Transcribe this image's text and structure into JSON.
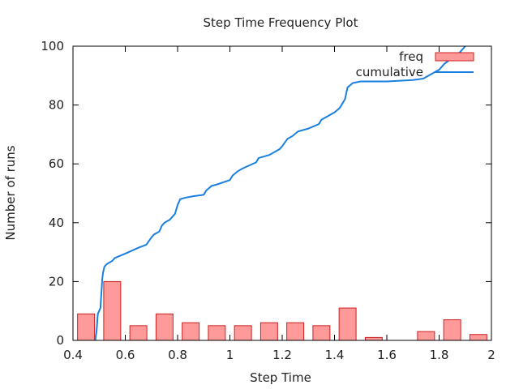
{
  "chart_data": {
    "type": "bar",
    "title": "Step Time Frequency Plot",
    "xlabel": "Step Time",
    "ylabel": "Number of runs",
    "xlim": [
      0.4,
      2.0
    ],
    "ylim": [
      0,
      100
    ],
    "x_ticks": [
      0.4,
      0.6,
      0.8,
      1,
      1.2,
      1.4,
      1.6,
      1.8,
      2
    ],
    "y_ticks": [
      0,
      20,
      40,
      60,
      80,
      100
    ],
    "grid": false,
    "legend_position": "top-right",
    "colors": {
      "bar_fill": "#ff9a9a",
      "bar_stroke": "#cc2020",
      "line": "#1a7fe0",
      "axis": "#000000"
    },
    "bar_width": 0.065,
    "series": [
      {
        "name": "freq",
        "type": "bar",
        "x": [
          0.45,
          0.55,
          0.65,
          0.75,
          0.85,
          0.95,
          1.05,
          1.15,
          1.25,
          1.35,
          1.45,
          1.55,
          1.65,
          1.75,
          1.85,
          1.95
        ],
        "values": [
          9,
          20,
          5,
          9,
          6,
          5,
          5,
          6,
          6,
          5,
          11,
          1,
          0,
          3,
          7,
          2
        ]
      },
      {
        "name": "cumulative",
        "type": "line",
        "x": [
          0.485,
          0.49,
          0.495,
          0.5,
          0.505,
          0.51,
          0.512,
          0.515,
          0.52,
          0.53,
          0.55,
          0.56,
          0.6,
          0.65,
          0.68,
          0.7,
          0.71,
          0.73,
          0.74,
          0.75,
          0.77,
          0.79,
          0.8,
          0.81,
          0.83,
          0.86,
          0.9,
          0.91,
          0.93,
          0.95,
          1.0,
          1.01,
          1.03,
          1.05,
          1.1,
          1.11,
          1.15,
          1.18,
          1.19,
          1.2,
          1.22,
          1.24,
          1.26,
          1.3,
          1.34,
          1.35,
          1.37,
          1.4,
          1.42,
          1.43,
          1.44,
          1.45,
          1.47,
          1.5,
          1.6,
          1.7,
          1.74,
          1.76,
          1.78,
          1.8,
          1.82,
          1.85,
          1.88,
          1.9
        ],
        "values": [
          0,
          3,
          9,
          10,
          11,
          18,
          21,
          23,
          25,
          26,
          27,
          28,
          29.5,
          31.5,
          32.5,
          35,
          36,
          37,
          39,
          40,
          41,
          43,
          46,
          48,
          48.5,
          49,
          49.5,
          51,
          52.5,
          53,
          54.5,
          56,
          57.5,
          58.5,
          60.5,
          62,
          63,
          64.5,
          65,
          66,
          68.5,
          69.5,
          71,
          72,
          73.5,
          75,
          76,
          77.5,
          79,
          80.5,
          82,
          86,
          87.5,
          88,
          88,
          88.5,
          89,
          90,
          91,
          92,
          94,
          96,
          98,
          100
        ]
      }
    ]
  }
}
